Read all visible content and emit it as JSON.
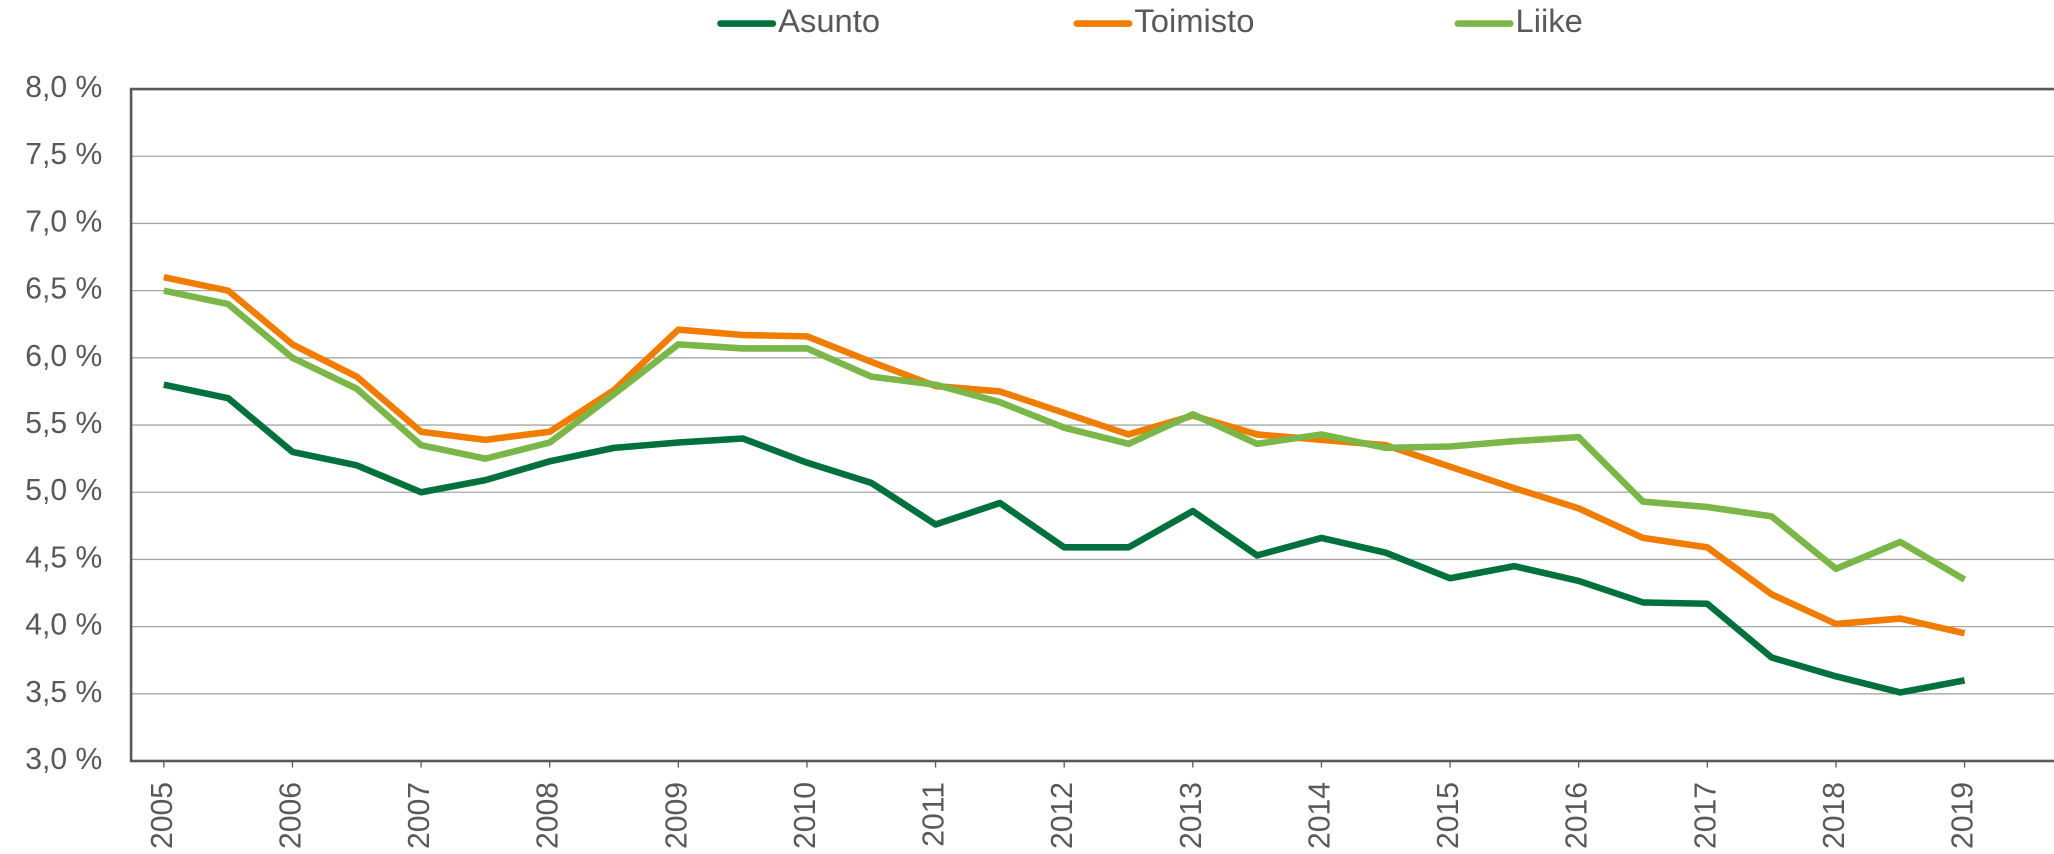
{
  "chart_data": {
    "type": "line",
    "x": [
      2005,
      2005.5,
      2006,
      2006.5,
      2007,
      2007.5,
      2008,
      2008.5,
      2009,
      2009.5,
      2010,
      2010.5,
      2011,
      2011.5,
      2012,
      2012.5,
      2013,
      2013.5,
      2014,
      2014.5,
      2015,
      2015.5,
      2016,
      2016.5,
      2017,
      2017.5,
      2018,
      2018.5,
      2019
    ],
    "series": [
      {
        "name": "Asunto",
        "color": "#00703c",
        "values": [
          5.8,
          5.7,
          5.3,
          5.2,
          5.0,
          5.09,
          5.23,
          5.33,
          5.37,
          5.4,
          5.22,
          5.07,
          4.76,
          4.92,
          4.59,
          4.59,
          4.86,
          4.53,
          4.66,
          4.55,
          4.36,
          4.45,
          4.34,
          4.18,
          4.17,
          3.77,
          3.63,
          3.51,
          3.6
        ]
      },
      {
        "name": "Toimisto",
        "color": "#f07d00",
        "values": [
          6.6,
          6.5,
          6.1,
          5.86,
          5.45,
          5.39,
          5.45,
          5.76,
          6.21,
          6.17,
          6.16,
          5.97,
          5.79,
          5.75,
          5.59,
          5.43,
          5.57,
          5.43,
          5.39,
          5.35,
          5.19,
          5.03,
          4.88,
          4.66,
          4.59,
          4.24,
          4.02,
          4.06,
          3.95
        ]
      },
      {
        "name": "Liike",
        "color": "#7ab648",
        "values": [
          6.5,
          6.4,
          6.0,
          5.77,
          5.35,
          5.25,
          5.37,
          5.73,
          6.1,
          6.07,
          6.07,
          5.86,
          5.8,
          5.67,
          5.48,
          5.36,
          5.58,
          5.36,
          5.43,
          5.33,
          5.34,
          5.38,
          5.41,
          4.93,
          4.89,
          4.82,
          4.43,
          4.63,
          4.35
        ]
      }
    ],
    "xlim": [
      2004.75,
      2019.75
    ],
    "xticks": [
      2005,
      2006,
      2007,
      2008,
      2009,
      2010,
      2011,
      2012,
      2013,
      2014,
      2015,
      2016,
      2017,
      2018,
      2019
    ],
    "ylim": [
      3.0,
      8.0
    ],
    "yticks": [
      {
        "value": 3.0,
        "label": "3,0 %"
      },
      {
        "value": 3.5,
        "label": "3,5 %"
      },
      {
        "value": 4.0,
        "label": "4,0 %"
      },
      {
        "value": 4.5,
        "label": "4,5 %"
      },
      {
        "value": 5.0,
        "label": "5,0 %"
      },
      {
        "value": 5.5,
        "label": "5,5 %"
      },
      {
        "value": 6.0,
        "label": "6,0 %"
      },
      {
        "value": 6.5,
        "label": "6,5 %"
      },
      {
        "value": 7.0,
        "label": "7,0 %"
      },
      {
        "value": 7.5,
        "label": "7,5 %"
      },
      {
        "value": 8.0,
        "label": "8,0 %"
      }
    ],
    "grid": true,
    "legend": "top"
  }
}
